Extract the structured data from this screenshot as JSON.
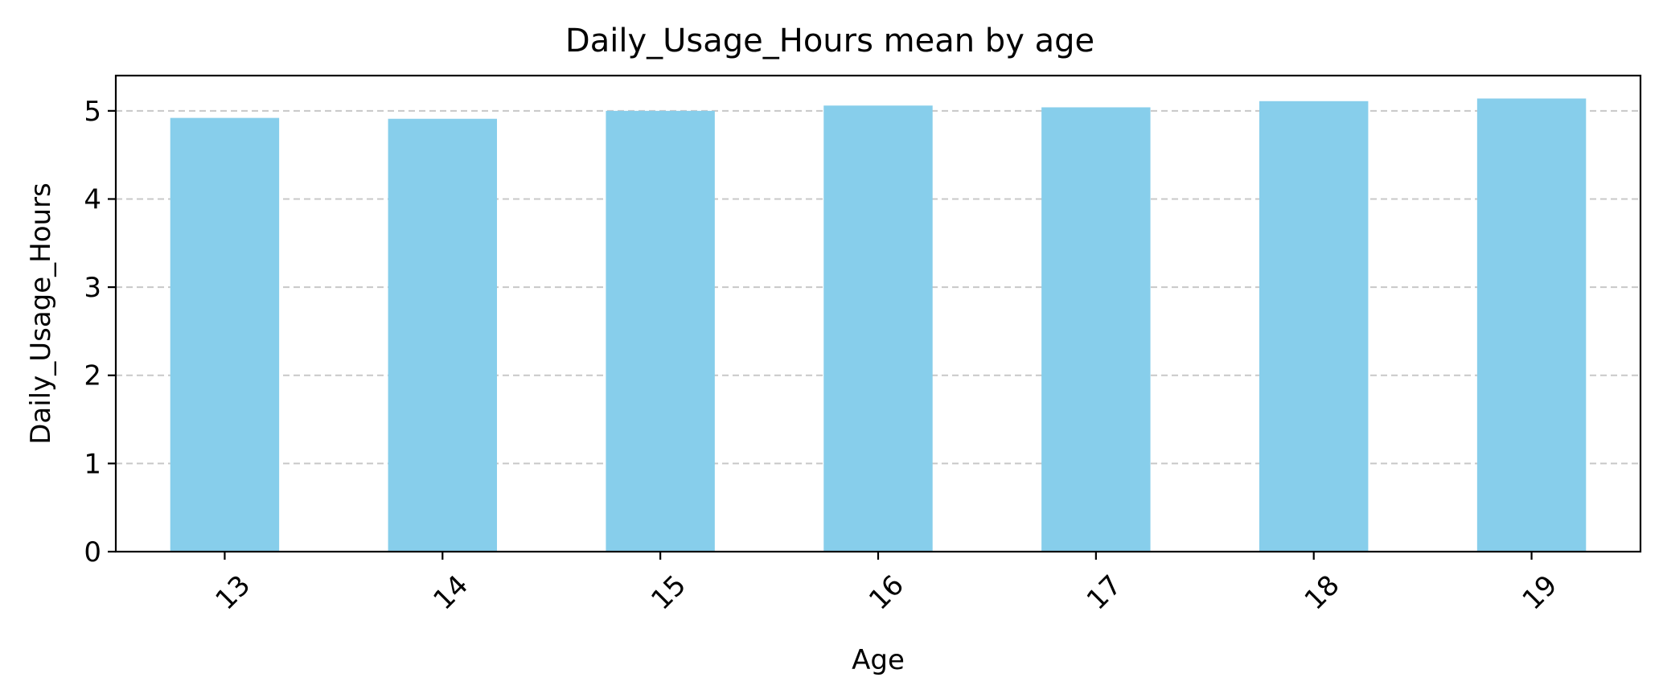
{
  "chart_data": {
    "type": "bar",
    "title": "Daily_Usage_Hours mean by age",
    "xlabel": "Age",
    "ylabel": "Daily_Usage_Hours",
    "categories": [
      "13",
      "14",
      "15",
      "16",
      "17",
      "18",
      "19"
    ],
    "values": [
      4.92,
      4.91,
      5.0,
      5.06,
      5.04,
      5.11,
      5.14
    ],
    "ylim": [
      0,
      5.4
    ],
    "yticks": [
      "0",
      "1",
      "2",
      "3",
      "4",
      "5"
    ],
    "grid": "y-dashed",
    "xtick_rotation": -45,
    "bar_color": "#87ceeb",
    "grid_color": "#c8c8c8",
    "legend": "none"
  }
}
